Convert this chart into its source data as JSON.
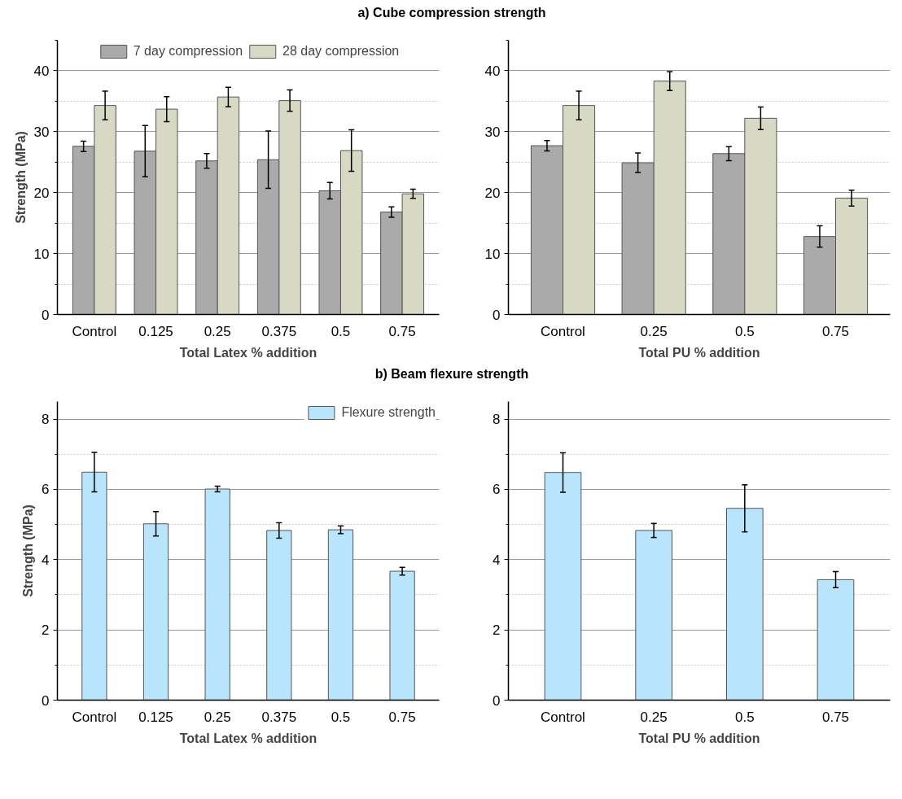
{
  "chart_data": [
    {
      "type": "bar",
      "title": "a) Cube compression strength",
      "xlabel": "Total Latex % addition",
      "ylabel": "Strength (MPa)",
      "categories": [
        "Control",
        "0.125",
        "0.25",
        "0.375",
        "0.5",
        "0.75"
      ],
      "series": [
        {
          "name": "7 day compression",
          "color": "#aaaaaa",
          "values": [
            27.6,
            26.8,
            25.2,
            25.4,
            20.3,
            16.8
          ],
          "errors": [
            0.85,
            4.2,
            1.2,
            4.7,
            1.35,
            0.85
          ]
        },
        {
          "name": "28 day compression",
          "color": "#d8d9c4",
          "values": [
            34.3,
            33.7,
            35.7,
            35.1,
            26.9,
            19.8
          ],
          "errors": [
            2.35,
            2.05,
            1.6,
            1.75,
            3.4,
            0.75
          ]
        }
      ],
      "ylim": [
        0,
        45
      ],
      "yticks": [
        0,
        10,
        20,
        30,
        40
      ],
      "grid": "y",
      "legend": "top"
    },
    {
      "type": "bar",
      "xlabel": "Total PU % addition",
      "categories": [
        "Control",
        "0.25",
        "0.5",
        "0.75"
      ],
      "series": [
        {
          "color": "#aaaaaa",
          "values": [
            27.7,
            24.9,
            26.4,
            12.8
          ],
          "errors": [
            0.85,
            1.6,
            1.15,
            1.75
          ]
        },
        {
          "color": "#d8d9c4",
          "values": [
            34.3,
            38.3,
            32.2,
            19.1
          ],
          "errors": [
            2.35,
            1.55,
            1.85,
            1.3
          ]
        }
      ],
      "ylim": [
        0,
        45
      ],
      "yticks": [
        0,
        10,
        20,
        30,
        40
      ],
      "grid": "y"
    },
    {
      "type": "bar",
      "title": "b) Beam flexure strength",
      "xlabel": "Total Latex % addition",
      "ylabel": "Strength (MPa)",
      "categories": [
        "Control",
        "0.125",
        "0.25",
        "0.375",
        "0.5",
        "0.75"
      ],
      "series": [
        {
          "name": "Flexure strength",
          "color": "#b8e4fc",
          "values": [
            6.49,
            5.02,
            6.01,
            4.83,
            4.85,
            3.67
          ],
          "errors": [
            0.56,
            0.35,
            0.08,
            0.22,
            0.11,
            0.11
          ]
        }
      ],
      "ylim": [
        0,
        8.5
      ],
      "yticks": [
        0,
        2,
        4,
        6,
        8
      ],
      "grid": "y",
      "legend": "top right"
    },
    {
      "type": "bar",
      "xlabel": "Total PU % addition",
      "categories": [
        "Control",
        "0.25",
        "0.5",
        "0.75"
      ],
      "series": [
        {
          "color": "#b8e4fc",
          "values": [
            6.48,
            4.83,
            5.46,
            3.43
          ],
          "errors": [
            0.56,
            0.2,
            0.67,
            0.23
          ]
        }
      ],
      "ylim": [
        0,
        8.5
      ],
      "yticks": [
        0,
        2,
        4,
        6,
        8
      ],
      "grid": "y"
    }
  ]
}
